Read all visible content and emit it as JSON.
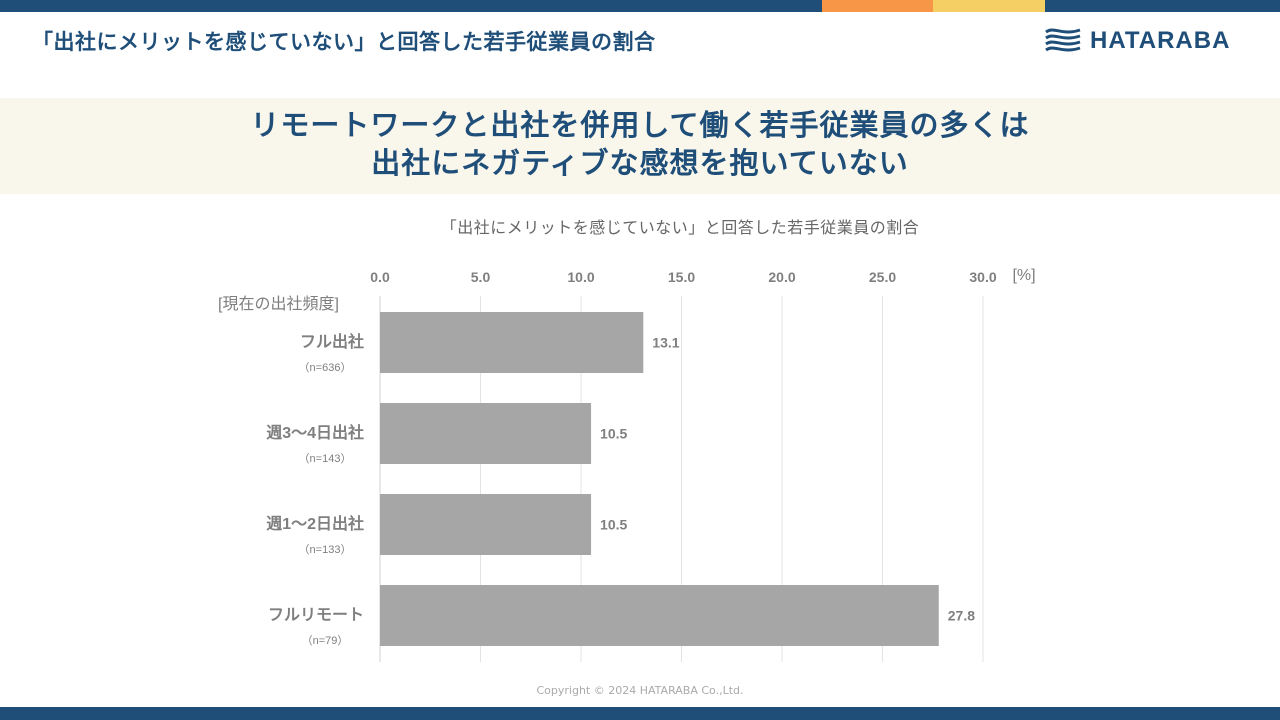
{
  "header": {
    "title": "「出社にメリットを感じていない」と回答した若手従業員の割合",
    "logo_text": "HATARABA"
  },
  "headline": {
    "line1": "リモートワークと出社を併用して働く若手従業員の多くは",
    "line2": "出社にネガティブな感想を抱いていない"
  },
  "colors": {
    "navy": "#1f4e79",
    "orange": "#f79646",
    "yellow": "#f5cf63",
    "bar": "#a6a6a6",
    "band": "#f9f6ec"
  },
  "chart_data": {
    "type": "bar",
    "orientation": "horizontal",
    "title": "「出社にメリットを感じていない」と回答した若手従業員の割合",
    "xunit": "[%]",
    "ylabel": "[現在の出社頻度]",
    "xlim": [
      0,
      30
    ],
    "ticks": [
      "0.0",
      "5.0",
      "10.0",
      "15.0",
      "20.0",
      "25.0",
      "30.0"
    ],
    "tick_values": [
      0,
      5,
      10,
      15,
      20,
      25,
      30
    ],
    "categories": [
      {
        "label": "フル出社",
        "n": "（n=636）"
      },
      {
        "label": "週3〜4日出社",
        "n": "（n=143）"
      },
      {
        "label": "週1〜2日出社",
        "n": "（n=133）"
      },
      {
        "label": "フルリモート",
        "n": "（n=79）"
      }
    ],
    "values": [
      13.1,
      10.5,
      10.5,
      27.8
    ],
    "value_labels": [
      "13.1",
      "10.5",
      "10.5",
      "27.8"
    ],
    "grid": true
  },
  "footer": {
    "copyright": "Copyright © 2024 HATARABA Co.,Ltd."
  }
}
